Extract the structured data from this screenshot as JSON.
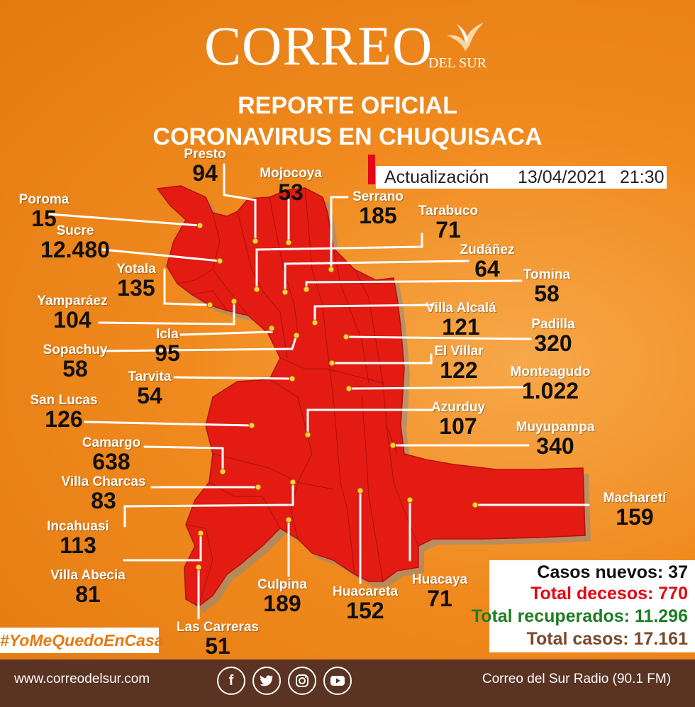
{
  "brand": {
    "name": "CORREO",
    "sub": "DEL SUR",
    "bird": "dove-logo-icon"
  },
  "title": {
    "line1": "REPORTE OFICIAL",
    "line2": "CORONAVIRUS EN CHUQUISACA"
  },
  "update": {
    "label": "Actualización",
    "date": "13/04/2021",
    "time": "21:30"
  },
  "colors": {
    "background": "#f08a1e",
    "map": "#e31b12",
    "footer": "#5b3323",
    "new": "#111111",
    "deaths": "#e30613",
    "recovered": "#1e7d23",
    "total": "#7a4a2e"
  },
  "municipalities": [
    {
      "name": "Presto",
      "value": "94"
    },
    {
      "name": "Mojocoya",
      "value": "53"
    },
    {
      "name": "Serrano",
      "value": "185"
    },
    {
      "name": "Poroma",
      "value": "15"
    },
    {
      "name": "Tarabuco",
      "value": "71"
    },
    {
      "name": "Sucre",
      "value": "12.480"
    },
    {
      "name": "Zudáñez",
      "value": "64"
    },
    {
      "name": "Yotala",
      "value": "135"
    },
    {
      "name": "Tomina",
      "value": "58"
    },
    {
      "name": "Yamparáez",
      "value": "104"
    },
    {
      "name": "Villa Alcalá",
      "value": "121"
    },
    {
      "name": "Padilla",
      "value": "320"
    },
    {
      "name": "Icla",
      "value": "95"
    },
    {
      "name": "Sopachuy",
      "value": "58"
    },
    {
      "name": "El Villar",
      "value": "122"
    },
    {
      "name": "Tarvita",
      "value": "54"
    },
    {
      "name": "Monteagudo",
      "value": "1.022"
    },
    {
      "name": "San Lucas",
      "value": "126"
    },
    {
      "name": "Azurduy",
      "value": "107"
    },
    {
      "name": "Muyupampa",
      "value": "340"
    },
    {
      "name": "Camargo",
      "value": "638"
    },
    {
      "name": "Villa Charcas",
      "value": "83"
    },
    {
      "name": "Macharetí",
      "value": "159"
    },
    {
      "name": "Incahuasi",
      "value": "113"
    },
    {
      "name": "Villa Abecia",
      "value": "81"
    },
    {
      "name": "Culpina",
      "value": "189"
    },
    {
      "name": "Huacareta",
      "value": "152"
    },
    {
      "name": "Huacaya",
      "value": "71"
    },
    {
      "name": "Las Carreras",
      "value": "51"
    }
  ],
  "summary": {
    "new_cases": "Casos nuevos: 37",
    "deaths": "Total decesos: 770",
    "recovered": "Total recuperados: 11.296",
    "total": "Total casos: 17.161"
  },
  "hashtag": "#YoMeQuedoEnCasa",
  "footer": {
    "website": "www.correodelsur.com",
    "radio": "Correo del Sur Radio (90.1 FM)",
    "social": [
      "facebook-icon",
      "twitter-icon",
      "instagram-icon",
      "youtube-icon"
    ]
  }
}
